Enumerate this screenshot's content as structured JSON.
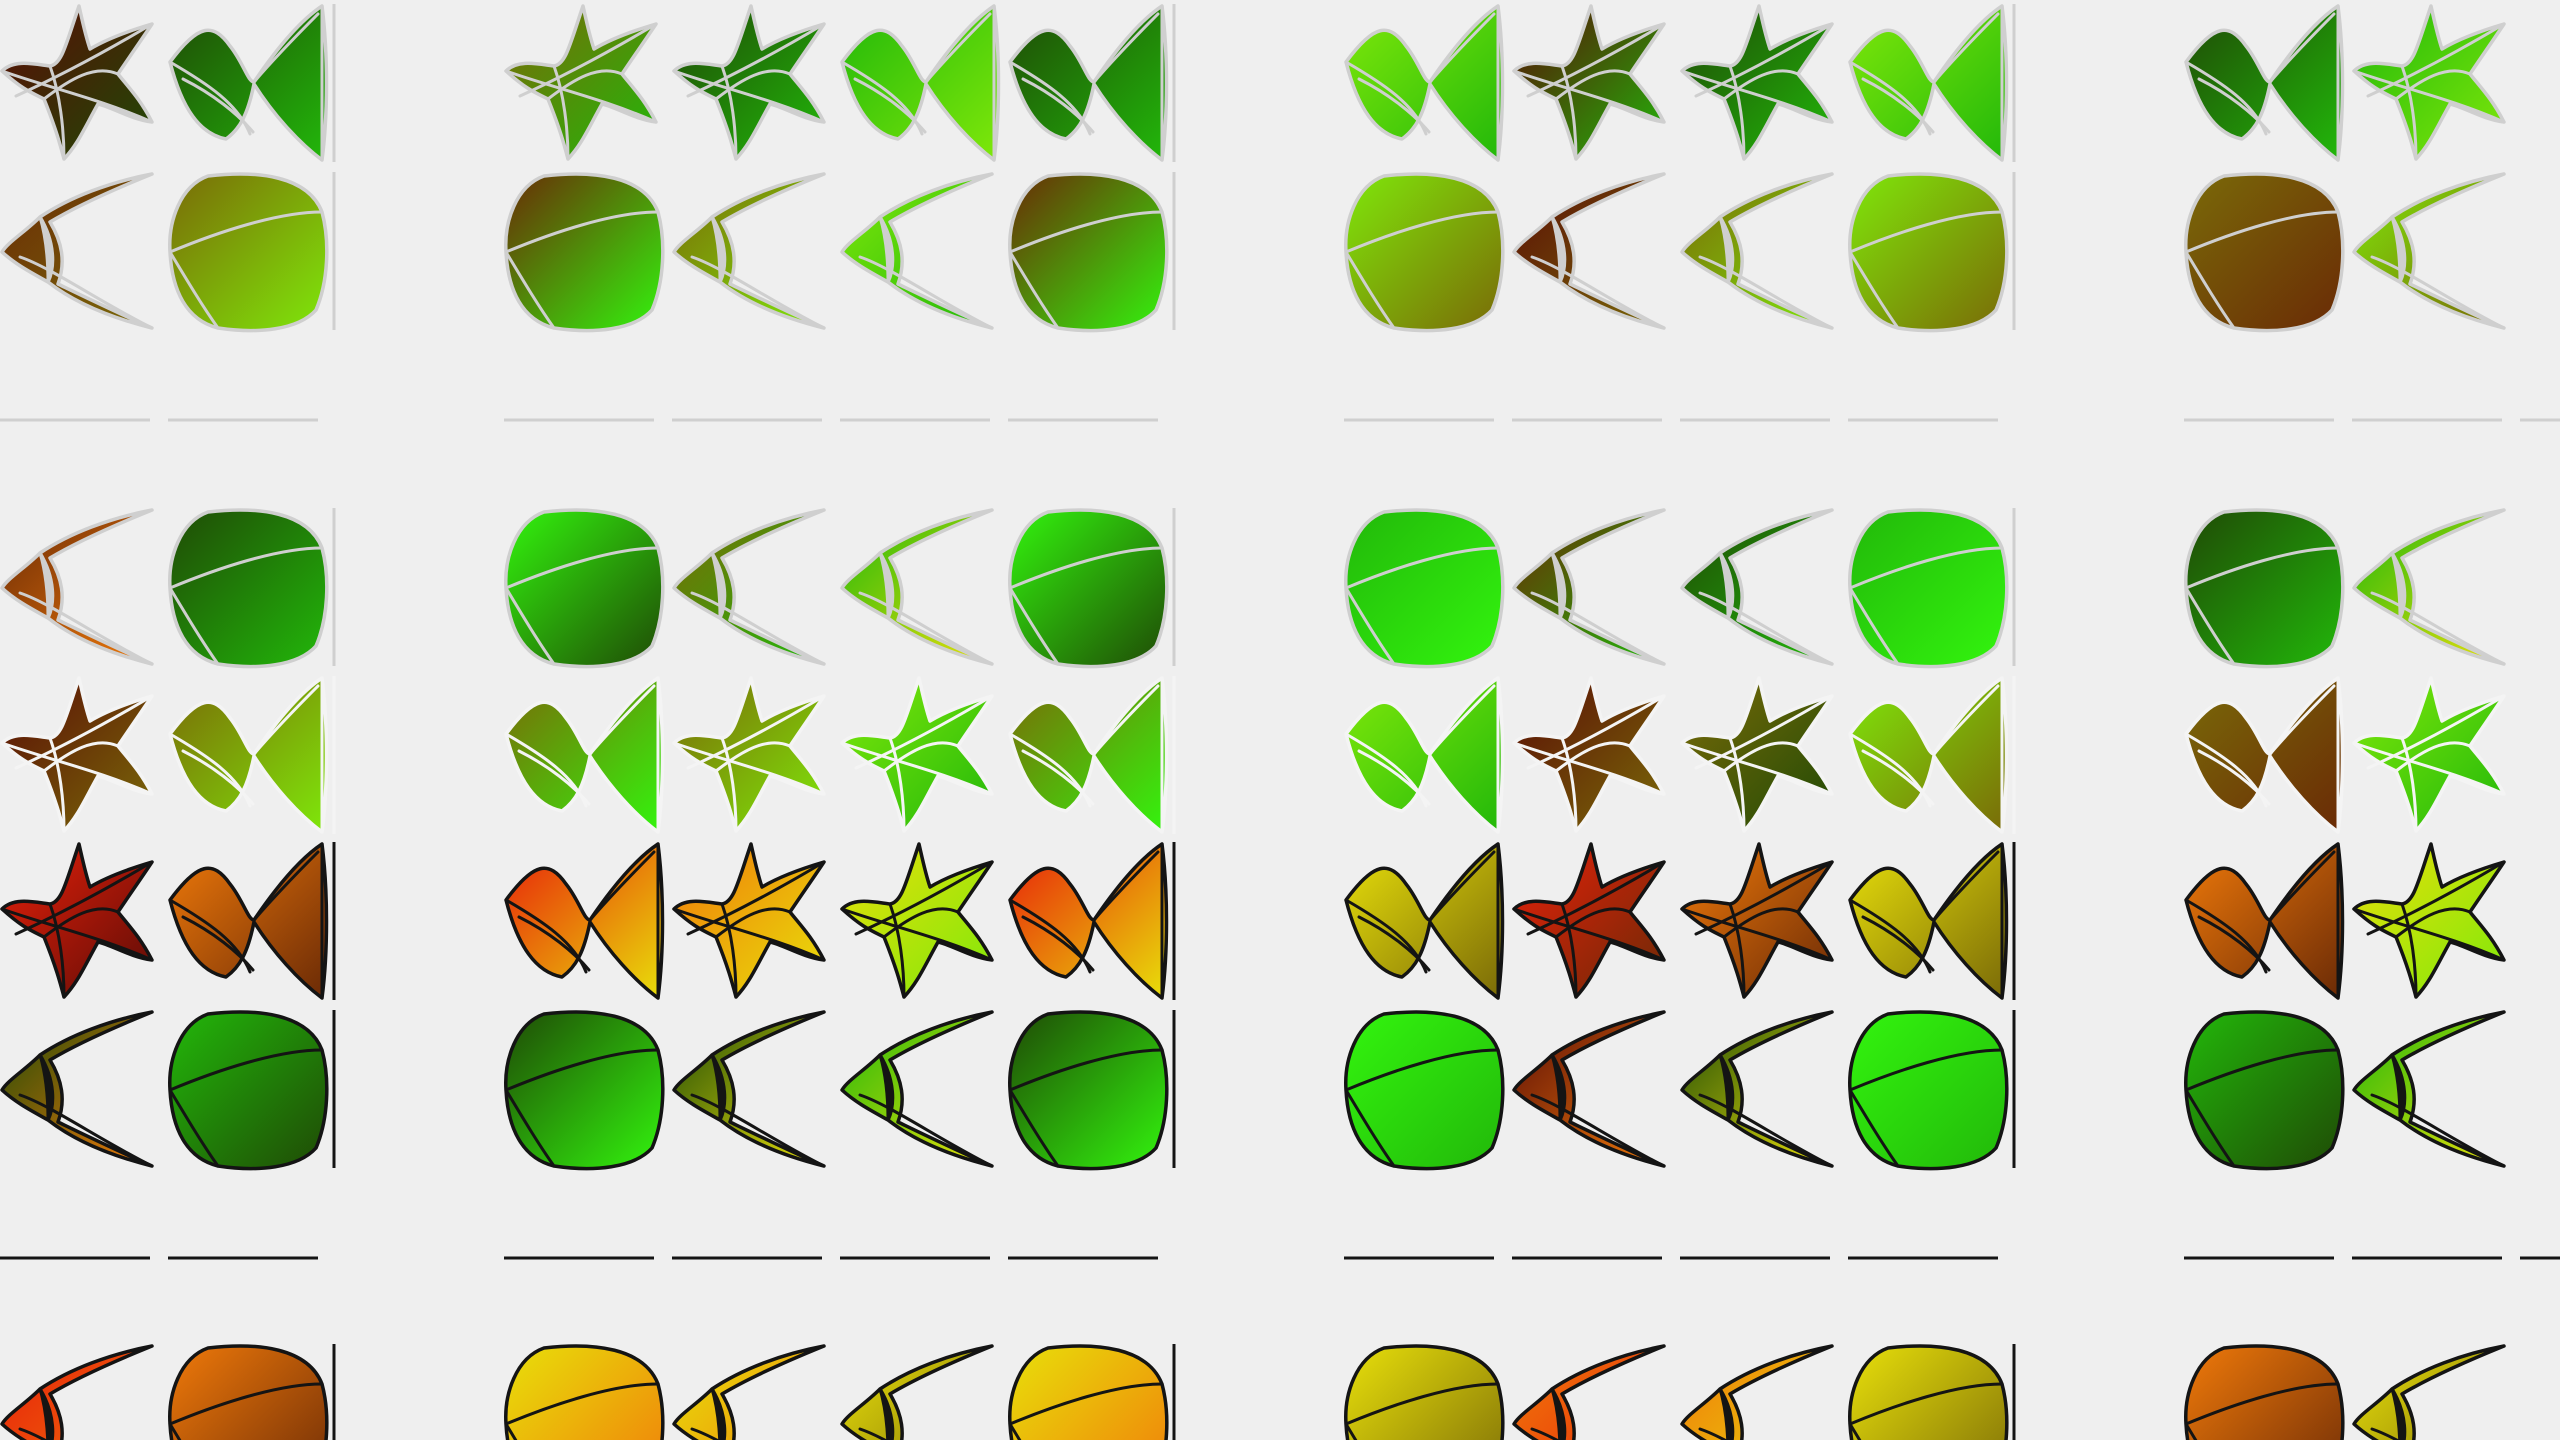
{
  "page": {
    "background": "#efefef"
  },
  "palette": {
    "green_dark": "#1f4a06",
    "green": "#22b80a",
    "green_bright": "#33f50e",
    "lime": "#7fe80a",
    "olive": "#7a6a08",
    "brown": "#6a2a06",
    "maroon": "#5a0c06",
    "red": "#e8200a",
    "orange": "#f07a0a",
    "yellow": "#e8e00a",
    "outline_light": "#cfcfcf",
    "outline_white": "#f4f4f4",
    "outline_dark": "#141414"
  },
  "shape_kinds": [
    "star-icon",
    "bowtie-icon",
    "chevron-icon",
    "rounded-square-icon"
  ],
  "bands": [
    {
      "name": "band-1",
      "outline": "outline_light",
      "rows": [
        {
          "cells": [
            {
              "kind": "star-icon",
              "colors": [
                "maroon",
                "green_dark"
              ]
            },
            {
              "kind": "bowtie-icon",
              "colors": [
                "green_dark",
                "green"
              ]
            },
            {
              "kind": "star-icon",
              "colors": [
                "olive",
                "green"
              ]
            },
            {
              "kind": "star-icon",
              "colors": [
                "green_dark",
                "green"
              ]
            },
            {
              "kind": "bowtie-icon",
              "colors": [
                "green",
                "lime"
              ]
            },
            {
              "kind": "bowtie-icon",
              "colors": [
                "green_dark",
                "green"
              ]
            },
            {
              "kind": "bowtie-icon",
              "colors": [
                "lime",
                "green"
              ]
            },
            {
              "kind": "star-icon",
              "colors": [
                "maroon",
                "green"
              ]
            },
            {
              "kind": "star-icon",
              "colors": [
                "green_dark",
                "green"
              ]
            },
            {
              "kind": "bowtie-icon",
              "colors": [
                "lime",
                "green"
              ]
            },
            {
              "kind": "bowtie-icon",
              "colors": [
                "green_dark",
                "green"
              ]
            },
            {
              "kind": "star-icon",
              "colors": [
                "green",
                "lime"
              ]
            }
          ]
        },
        {
          "cells": [
            {
              "kind": "chevron-icon",
              "colors": [
                "brown",
                "olive"
              ]
            },
            {
              "kind": "rounded-square-icon",
              "colors": [
                "olive",
                "lime"
              ]
            },
            {
              "kind": "rounded-square-icon",
              "colors": [
                "brown",
                "green_bright"
              ]
            },
            {
              "kind": "chevron-icon",
              "colors": [
                "olive",
                "lime"
              ]
            },
            {
              "kind": "chevron-icon",
              "colors": [
                "lime",
                "green"
              ]
            },
            {
              "kind": "rounded-square-icon",
              "colors": [
                "brown",
                "green_bright"
              ]
            },
            {
              "kind": "rounded-square-icon",
              "colors": [
                "lime",
                "olive"
              ]
            },
            {
              "kind": "chevron-icon",
              "colors": [
                "maroon",
                "olive"
              ]
            },
            {
              "kind": "chevron-icon",
              "colors": [
                "olive",
                "lime"
              ]
            },
            {
              "kind": "rounded-square-icon",
              "colors": [
                "lime",
                "olive"
              ]
            },
            {
              "kind": "rounded-square-icon",
              "colors": [
                "olive",
                "brown"
              ]
            },
            {
              "kind": "chevron-icon",
              "colors": [
                "lime",
                "olive"
              ]
            }
          ]
        }
      ]
    },
    {
      "name": "band-2",
      "outline": "outline_light",
      "rows": [
        {
          "cells": [
            {
              "kind": "chevron-icon",
              "colors": [
                "brown",
                "orange"
              ]
            },
            {
              "kind": "rounded-square-icon",
              "colors": [
                "green_dark",
                "green"
              ]
            },
            {
              "kind": "rounded-square-icon",
              "colors": [
                "green_bright",
                "green_dark"
              ]
            },
            {
              "kind": "chevron-icon",
              "colors": [
                "olive",
                "green"
              ]
            },
            {
              "kind": "chevron-icon",
              "colors": [
                "green",
                "yellow"
              ]
            },
            {
              "kind": "rounded-square-icon",
              "colors": [
                "green_bright",
                "green_dark"
              ]
            },
            {
              "kind": "rounded-square-icon",
              "colors": [
                "green",
                "green_bright"
              ]
            },
            {
              "kind": "chevron-icon",
              "colors": [
                "brown",
                "green"
              ]
            },
            {
              "kind": "chevron-icon",
              "colors": [
                "green_dark",
                "green"
              ]
            },
            {
              "kind": "rounded-square-icon",
              "colors": [
                "green",
                "green_bright"
              ]
            },
            {
              "kind": "rounded-square-icon",
              "colors": [
                "green_dark",
                "green"
              ]
            },
            {
              "kind": "chevron-icon",
              "colors": [
                "green",
                "yellow"
              ]
            }
          ]
        }
      ]
    },
    {
      "name": "band-3",
      "outline": "outline_white",
      "rows": [
        {
          "cells": [
            {
              "kind": "star-icon",
              "colors": [
                "maroon",
                "olive"
              ]
            },
            {
              "kind": "bowtie-icon",
              "colors": [
                "olive",
                "lime"
              ]
            },
            {
              "kind": "bowtie-icon",
              "colors": [
                "olive",
                "green_bright"
              ]
            },
            {
              "kind": "star-icon",
              "colors": [
                "olive",
                "lime"
              ]
            },
            {
              "kind": "star-icon",
              "colors": [
                "lime",
                "green"
              ]
            },
            {
              "kind": "bowtie-icon",
              "colors": [
                "olive",
                "green_bright"
              ]
            },
            {
              "kind": "bowtie-icon",
              "colors": [
                "lime",
                "green"
              ]
            },
            {
              "kind": "star-icon",
              "colors": [
                "maroon",
                "olive"
              ]
            },
            {
              "kind": "star-icon",
              "colors": [
                "olive",
                "green_dark"
              ]
            },
            {
              "kind": "bowtie-icon",
              "colors": [
                "lime",
                "olive"
              ]
            },
            {
              "kind": "bowtie-icon",
              "colors": [
                "olive",
                "brown"
              ]
            },
            {
              "kind": "star-icon",
              "colors": [
                "lime",
                "green"
              ]
            }
          ]
        }
      ]
    },
    {
      "name": "band-4",
      "outline": "outline_dark",
      "rows": [
        {
          "cells": [
            {
              "kind": "star-icon",
              "colors": [
                "red",
                "maroon"
              ]
            },
            {
              "kind": "bowtie-icon",
              "colors": [
                "orange",
                "brown"
              ]
            },
            {
              "kind": "bowtie-icon",
              "colors": [
                "red",
                "yellow"
              ]
            },
            {
              "kind": "star-icon",
              "colors": [
                "orange",
                "yellow"
              ]
            },
            {
              "kind": "star-icon",
              "colors": [
                "yellow",
                "lime"
              ]
            },
            {
              "kind": "bowtie-icon",
              "colors": [
                "red",
                "yellow"
              ]
            },
            {
              "kind": "bowtie-icon",
              "colors": [
                "yellow",
                "olive"
              ]
            },
            {
              "kind": "star-icon",
              "colors": [
                "red",
                "brown"
              ]
            },
            {
              "kind": "star-icon",
              "colors": [
                "orange",
                "brown"
              ]
            },
            {
              "kind": "bowtie-icon",
              "colors": [
                "yellow",
                "olive"
              ]
            },
            {
              "kind": "bowtie-icon",
              "colors": [
                "orange",
                "brown"
              ]
            },
            {
              "kind": "star-icon",
              "colors": [
                "yellow",
                "lime"
              ]
            }
          ]
        },
        {
          "cells": [
            {
              "kind": "chevron-icon",
              "colors": [
                "green_dark",
                "orange"
              ]
            },
            {
              "kind": "rounded-square-icon",
              "colors": [
                "green",
                "green_dark"
              ]
            },
            {
              "kind": "rounded-square-icon",
              "colors": [
                "green_dark",
                "green_bright"
              ]
            },
            {
              "kind": "chevron-icon",
              "colors": [
                "green_dark",
                "yellow"
              ]
            },
            {
              "kind": "chevron-icon",
              "colors": [
                "green",
                "yellow"
              ]
            },
            {
              "kind": "rounded-square-icon",
              "colors": [
                "green_dark",
                "green_bright"
              ]
            },
            {
              "kind": "rounded-square-icon",
              "colors": [
                "green_bright",
                "green"
              ]
            },
            {
              "kind": "chevron-icon",
              "colors": [
                "maroon",
                "orange"
              ]
            },
            {
              "kind": "chevron-icon",
              "colors": [
                "green_dark",
                "yellow"
              ]
            },
            {
              "kind": "rounded-square-icon",
              "colors": [
                "green_bright",
                "green"
              ]
            },
            {
              "kind": "rounded-square-icon",
              "colors": [
                "green",
                "green_dark"
              ]
            },
            {
              "kind": "chevron-icon",
              "colors": [
                "green",
                "yellow"
              ]
            }
          ]
        }
      ]
    },
    {
      "name": "band-5",
      "outline": "outline_dark",
      "rows": [
        {
          "cells": [
            {
              "kind": "chevron-icon",
              "colors": [
                "red",
                "orange"
              ]
            },
            {
              "kind": "rounded-square-icon",
              "colors": [
                "orange",
                "brown"
              ]
            },
            {
              "kind": "rounded-square-icon",
              "colors": [
                "yellow",
                "orange"
              ]
            },
            {
              "kind": "chevron-icon",
              "colors": [
                "yellow",
                "orange"
              ]
            },
            {
              "kind": "chevron-icon",
              "colors": [
                "yellow",
                "olive"
              ]
            },
            {
              "kind": "rounded-square-icon",
              "colors": [
                "yellow",
                "orange"
              ]
            },
            {
              "kind": "rounded-square-icon",
              "colors": [
                "yellow",
                "olive"
              ]
            },
            {
              "kind": "chevron-icon",
              "colors": [
                "orange",
                "red"
              ]
            },
            {
              "kind": "chevron-icon",
              "colors": [
                "orange",
                "yellow"
              ]
            },
            {
              "kind": "rounded-square-icon",
              "colors": [
                "yellow",
                "olive"
              ]
            },
            {
              "kind": "rounded-square-icon",
              "colors": [
                "orange",
                "brown"
              ]
            },
            {
              "kind": "chevron-icon",
              "colors": [
                "yellow",
                "olive"
              ]
            }
          ]
        }
      ]
    }
  ]
}
